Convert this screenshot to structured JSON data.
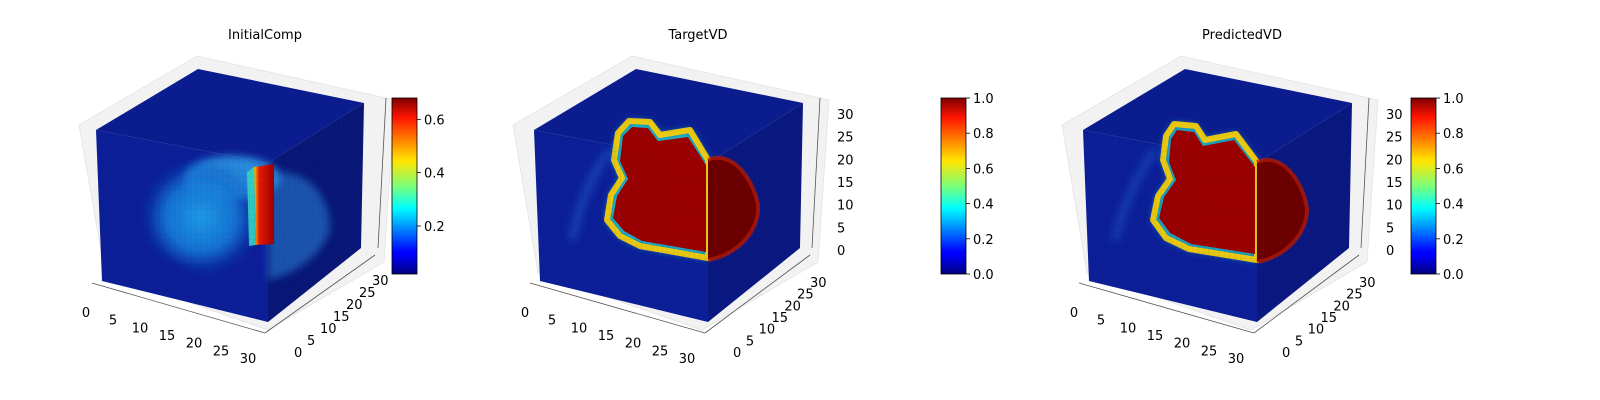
{
  "figure": {
    "background": "#ffffff",
    "colormap": "jet"
  },
  "chart_data": [
    {
      "type": "heatmap",
      "title": "InitialComp",
      "x_ticks": [
        "0",
        "5",
        "10",
        "15",
        "20",
        "25",
        "30"
      ],
      "y_ticks": [
        "0",
        "5",
        "10",
        "15",
        "20",
        "25",
        "30"
      ],
      "z_ticks": [],
      "xlim": [
        0,
        32
      ],
      "ylim": [
        0,
        32
      ],
      "zlim": [
        0,
        32
      ],
      "colorbar": {
        "min": 0.02,
        "max": 0.68,
        "ticks": [
          "0.2",
          "0.4",
          "0.6"
        ],
        "tick_values": [
          0.2,
          0.4,
          0.6
        ]
      },
      "description_values": {
        "background_level": 0.05,
        "interior_blob_level": 0.25,
        "edge_slab_level": 0.68
      }
    },
    {
      "type": "heatmap",
      "title": "TargetVD",
      "x_ticks": [
        "0",
        "5",
        "10",
        "15",
        "20",
        "25",
        "30"
      ],
      "y_ticks": [
        "0",
        "5",
        "10",
        "15",
        "20",
        "25",
        "30"
      ],
      "z_ticks": [
        "0",
        "5",
        "10",
        "15",
        "20",
        "25",
        "30"
      ],
      "xlim": [
        0,
        32
      ],
      "ylim": [
        0,
        32
      ],
      "zlim": [
        0,
        32
      ],
      "colorbar": {
        "min": 0.0,
        "max": 1.0,
        "ticks": [
          "0.0",
          "0.2",
          "0.4",
          "0.6",
          "0.8",
          "1.0"
        ],
        "tick_values": [
          0,
          0.2,
          0.4,
          0.6,
          0.8,
          1.0
        ]
      },
      "description_values": {
        "background_level": 0.0,
        "inside_region_level": 1.0
      }
    },
    {
      "type": "heatmap",
      "title": "PredictedVD",
      "x_ticks": [
        "0",
        "5",
        "10",
        "15",
        "20",
        "25",
        "30"
      ],
      "y_ticks": [
        "0",
        "5",
        "10",
        "15",
        "20",
        "25",
        "30"
      ],
      "z_ticks": [
        "0",
        "5",
        "10",
        "15",
        "20",
        "25",
        "30"
      ],
      "xlim": [
        0,
        32
      ],
      "ylim": [
        0,
        32
      ],
      "zlim": [
        0,
        32
      ],
      "colorbar": {
        "min": 0.0,
        "max": 1.0,
        "ticks": [
          "0.0",
          "0.2",
          "0.4",
          "0.6",
          "0.8",
          "1.0"
        ],
        "tick_values": [
          0,
          0.2,
          0.4,
          0.6,
          0.8,
          1.0
        ]
      },
      "description_values": {
        "background_level": 0.0,
        "inside_region_level": 1.0
      }
    }
  ]
}
